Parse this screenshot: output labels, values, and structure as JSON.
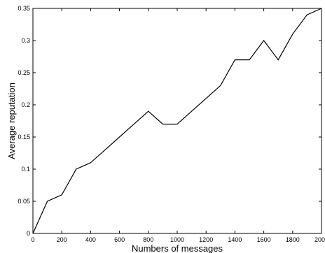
{
  "chart_data": {
    "type": "line",
    "title": "",
    "xlabel": "Numbers of messages",
    "ylabel": "Average reputation",
    "xlim": [
      0,
      2000
    ],
    "ylim": [
      0,
      0.35
    ],
    "x_ticks": [
      0,
      200,
      400,
      600,
      800,
      1000,
      1200,
      1400,
      1600,
      1800,
      2000
    ],
    "x_tick_labels": [
      "0",
      "200",
      "400",
      "600",
      "800",
      "1000",
      "1200",
      "1400",
      "1600",
      "1800",
      "2000"
    ],
    "y_ticks": [
      0,
      0.05,
      0.1,
      0.15,
      0.2,
      0.25,
      0.3,
      0.35
    ],
    "y_tick_labels": [
      "0",
      "0.05",
      "0.1",
      "0.15",
      "0.2",
      "0.25",
      "0.3",
      "0.35"
    ],
    "grid": false,
    "legend": "none",
    "line_color": "#000000",
    "series": [
      {
        "x": [
          0,
          100,
          200,
          300,
          400,
          500,
          600,
          700,
          800,
          900,
          1000,
          1100,
          1200,
          1300,
          1400,
          1500,
          1600,
          1700,
          1800,
          1900,
          2000
        ],
        "values": [
          0,
          0.05,
          0.06,
          0.1,
          0.11,
          0.13,
          0.15,
          0.17,
          0.19,
          0.17,
          0.17,
          0.19,
          0.21,
          0.23,
          0.27,
          0.27,
          0.3,
          0.27,
          0.31,
          0.34,
          0.35
        ]
      }
    ]
  }
}
